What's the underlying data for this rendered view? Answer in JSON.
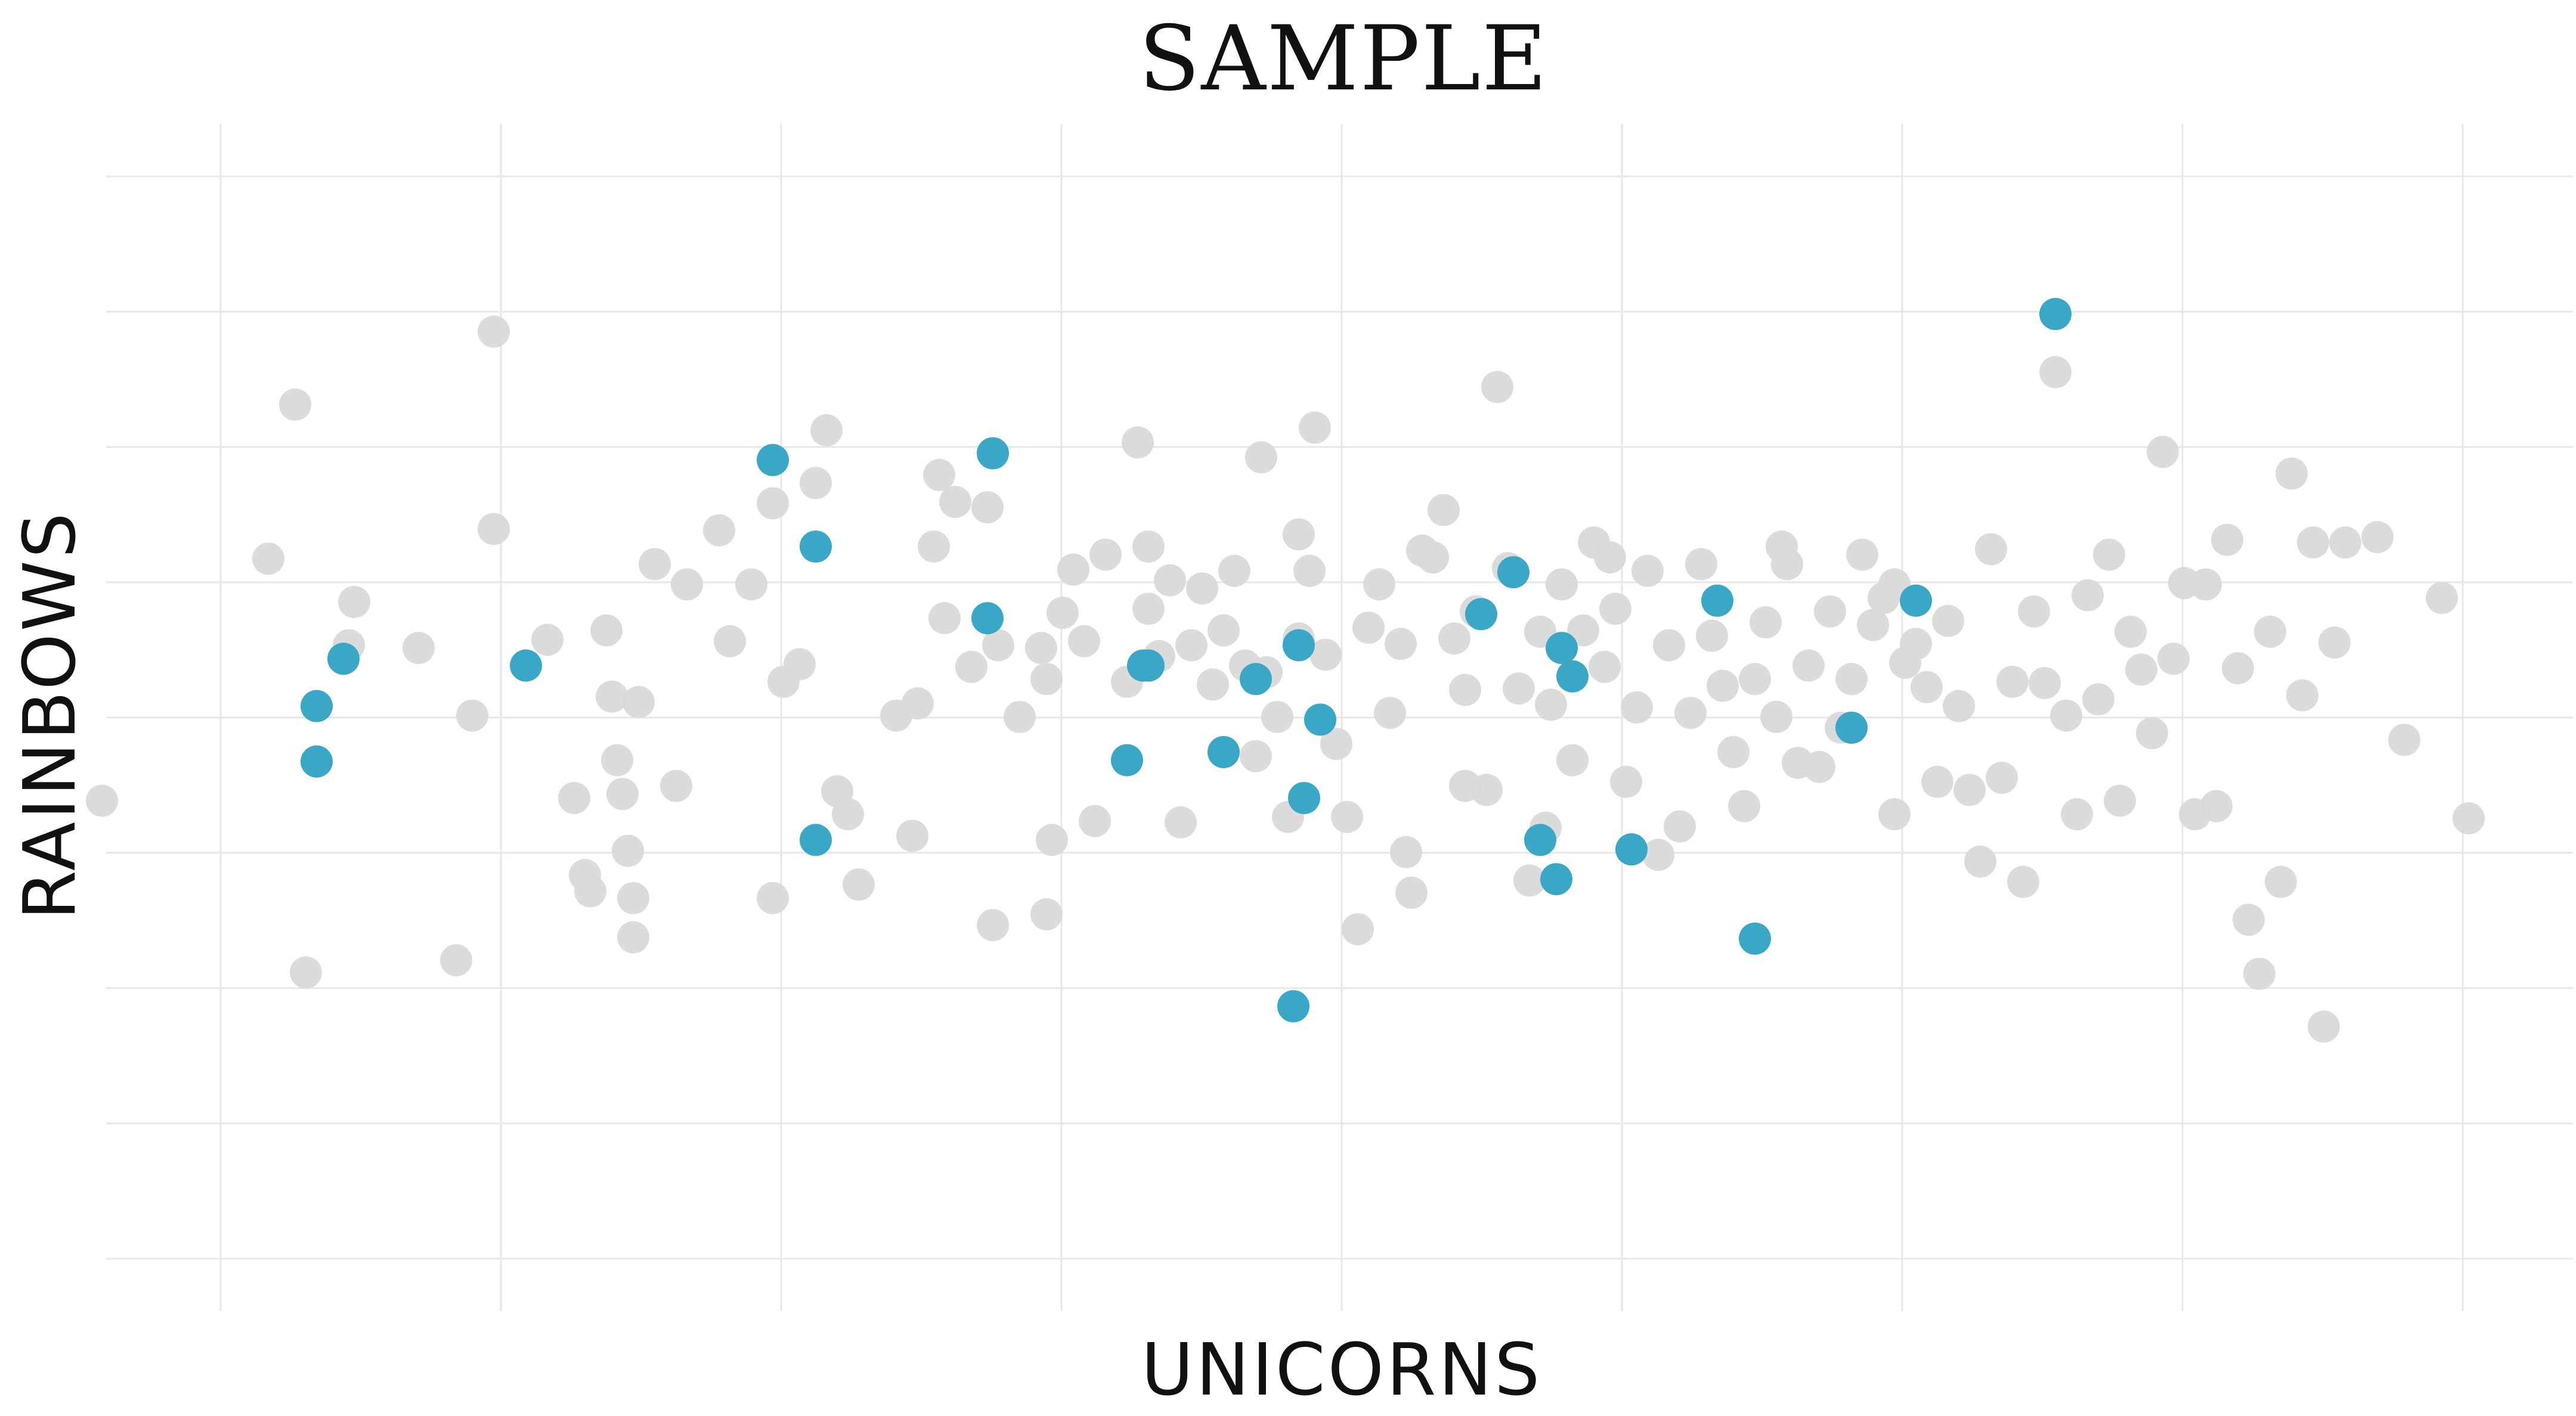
{
  "chart_data": {
    "type": "scatter",
    "title": "Sample",
    "xlabel": "Unicorns",
    "ylabel": "Rainbows",
    "xlim": [
      -2.2,
      2.2
    ],
    "ylim": [
      -4.0,
      4.0
    ],
    "grid": true,
    "tick_labels_shown": false,
    "colors": {
      "background": "#ffffff",
      "grid": "#e7e7e7",
      "points": "#d9d9d9",
      "highlight": "#3aa7c6",
      "text": "#111111"
    },
    "series": [
      {
        "values": [
          [
            -2.21,
            -0.6
          ],
          [
            -1.9,
            1.19
          ],
          [
            -1.85,
            2.33
          ],
          [
            -1.83,
            -1.87
          ],
          [
            -1.74,
            0.87
          ],
          [
            -1.75,
            0.55
          ],
          [
            -1.62,
            0.53
          ],
          [
            -1.52,
            0.03
          ],
          [
            -1.55,
            -1.78
          ],
          [
            -1.48,
            2.87
          ],
          [
            -1.48,
            1.41
          ],
          [
            -1.38,
            0.59
          ],
          [
            -1.33,
            -0.58
          ],
          [
            -1.31,
            -1.15
          ],
          [
            -1.3,
            -1.27
          ],
          [
            -1.27,
            0.66
          ],
          [
            -1.26,
            0.17
          ],
          [
            -1.25,
            -0.3
          ],
          [
            -1.24,
            -0.55
          ],
          [
            -1.23,
            -0.97
          ],
          [
            -1.22,
            -1.32
          ],
          [
            -1.22,
            -1.61
          ],
          [
            -1.21,
            0.13
          ],
          [
            -1.18,
            1.15
          ],
          [
            -1.14,
            -0.49
          ],
          [
            -1.12,
            1.0
          ],
          [
            -1.06,
            1.4
          ],
          [
            -1.04,
            0.58
          ],
          [
            -1.0,
            1.0
          ],
          [
            -0.96,
            1.6
          ],
          [
            -0.96,
            -1.32
          ],
          [
            -0.94,
            0.28
          ],
          [
            -0.91,
            0.41
          ],
          [
            -0.88,
            1.75
          ],
          [
            -0.86,
            2.14
          ],
          [
            -0.84,
            -0.53
          ],
          [
            -0.82,
            -0.7
          ],
          [
            -0.8,
            -1.22
          ],
          [
            -0.73,
            0.03
          ],
          [
            -0.7,
            -0.86
          ],
          [
            -0.66,
            1.28
          ],
          [
            -0.65,
            1.81
          ],
          [
            -0.64,
            0.75
          ],
          [
            -0.62,
            1.61
          ],
          [
            -0.59,
            0.39
          ],
          [
            -0.56,
            1.57
          ],
          [
            -0.55,
            -1.52
          ],
          [
            -0.54,
            0.55
          ],
          [
            -0.5,
            0.02
          ],
          [
            -0.46,
            0.53
          ],
          [
            -0.45,
            -1.44
          ],
          [
            -0.44,
            -0.89
          ],
          [
            -0.42,
            0.79
          ],
          [
            -0.4,
            1.11
          ],
          [
            -0.38,
            0.58
          ],
          [
            -0.36,
            -0.75
          ],
          [
            -0.34,
            1.22
          ],
          [
            -0.3,
            0.28
          ],
          [
            -0.28,
            2.05
          ],
          [
            -0.26,
            0.82
          ],
          [
            -0.24,
            0.47
          ],
          [
            -0.22,
            1.03
          ],
          [
            -0.2,
            -0.76
          ],
          [
            -0.18,
            0.55
          ],
          [
            -0.16,
            0.97
          ],
          [
            -0.14,
            0.26
          ],
          [
            -0.12,
            0.66
          ],
          [
            -0.1,
            1.1
          ],
          [
            -0.08,
            0.4
          ],
          [
            -0.06,
            -0.27
          ],
          [
            -0.05,
            1.94
          ],
          [
            -0.04,
            0.35
          ],
          [
            -0.02,
            0.02
          ],
          [
            0.0,
            -0.72
          ],
          [
            0.02,
            0.6
          ],
          [
            0.04,
            1.1
          ],
          [
            0.05,
            2.16
          ],
          [
            0.07,
            0.48
          ],
          [
            0.09,
            -0.18
          ],
          [
            0.11,
            -0.72
          ],
          [
            0.13,
            -1.55
          ],
          [
            0.15,
            0.68
          ],
          [
            0.17,
            1.0
          ],
          [
            0.19,
            0.05
          ],
          [
            0.21,
            0.56
          ],
          [
            0.23,
            -1.28
          ],
          [
            0.25,
            1.25
          ],
          [
            0.27,
            1.2
          ],
          [
            0.29,
            1.55
          ],
          [
            0.31,
            0.6
          ],
          [
            0.33,
            0.22
          ],
          [
            0.35,
            0.8
          ],
          [
            0.37,
            -0.52
          ],
          [
            0.39,
            2.46
          ],
          [
            0.41,
            1.12
          ],
          [
            0.43,
            0.23
          ],
          [
            0.45,
            -1.19
          ],
          [
            0.47,
            0.65
          ],
          [
            0.49,
            0.11
          ],
          [
            0.51,
            1.0
          ],
          [
            0.53,
            -0.3
          ],
          [
            0.55,
            0.66
          ],
          [
            0.57,
            1.31
          ],
          [
            0.59,
            0.39
          ],
          [
            0.61,
            0.82
          ],
          [
            0.63,
            -0.46
          ],
          [
            0.65,
            0.09
          ],
          [
            0.67,
            1.1
          ],
          [
            0.69,
            -1.0
          ],
          [
            0.71,
            0.55
          ],
          [
            0.73,
            -0.79
          ],
          [
            0.75,
            0.05
          ],
          [
            0.77,
            1.15
          ],
          [
            0.79,
            0.62
          ],
          [
            0.81,
            0.25
          ],
          [
            0.83,
            -0.24
          ],
          [
            0.85,
            -0.64
          ],
          [
            0.87,
            0.3
          ],
          [
            0.89,
            0.72
          ],
          [
            0.91,
            0.02
          ],
          [
            0.93,
            1.15
          ],
          [
            0.95,
            -0.32
          ],
          [
            0.97,
            0.4
          ],
          [
            0.99,
            -0.35
          ],
          [
            1.01,
            0.8
          ],
          [
            1.03,
            -0.06
          ],
          [
            1.05,
            0.3
          ],
          [
            1.07,
            1.22
          ],
          [
            1.09,
            0.7
          ],
          [
            1.11,
            0.9
          ],
          [
            1.13,
            -0.7
          ],
          [
            1.15,
            0.42
          ],
          [
            1.17,
            0.56
          ],
          [
            1.19,
            0.24
          ],
          [
            1.21,
            -0.46
          ],
          [
            1.23,
            0.73
          ],
          [
            1.25,
            0.1
          ],
          [
            1.27,
            -0.52
          ],
          [
            1.29,
            -1.05
          ],
          [
            1.31,
            1.26
          ],
          [
            1.33,
            -0.43
          ],
          [
            1.35,
            0.28
          ],
          [
            1.37,
            -1.2
          ],
          [
            1.39,
            0.8
          ],
          [
            1.41,
            0.27
          ],
          [
            1.43,
            2.57
          ],
          [
            1.45,
            0.03
          ],
          [
            1.47,
            -0.7
          ],
          [
            1.49,
            0.92
          ],
          [
            1.51,
            0.15
          ],
          [
            1.53,
            1.22
          ],
          [
            1.55,
            -0.6
          ],
          [
            1.57,
            0.65
          ],
          [
            1.59,
            0.37
          ],
          [
            1.61,
            -0.1
          ],
          [
            1.63,
            1.98
          ],
          [
            1.65,
            0.45
          ],
          [
            1.67,
            1.01
          ],
          [
            1.69,
            -0.7
          ],
          [
            1.71,
            1.0
          ],
          [
            1.73,
            -0.64
          ],
          [
            1.75,
            1.33
          ],
          [
            1.77,
            0.38
          ],
          [
            1.79,
            -1.48
          ],
          [
            1.81,
            -1.88
          ],
          [
            1.83,
            0.65
          ],
          [
            1.85,
            -1.2
          ],
          [
            1.87,
            1.82
          ],
          [
            1.89,
            0.18
          ],
          [
            1.91,
            1.31
          ],
          [
            1.93,
            -2.27
          ],
          [
            1.95,
            0.57
          ],
          [
            1.97,
            1.31
          ],
          [
            2.03,
            1.35
          ],
          [
            2.08,
            -0.15
          ],
          [
            2.15,
            0.9
          ],
          [
            2.2,
            -0.73
          ],
          [
            -0.26,
            1.28
          ],
          [
            0.33,
            -0.49
          ],
          [
            0.6,
            1.2
          ],
          [
            0.92,
            1.28
          ],
          [
            1.13,
            1.0
          ],
          [
            -0.45,
            0.3
          ],
          [
            -0.69,
            0.12
          ],
          [
            0.22,
            -0.98
          ],
          [
            0.02,
            1.37
          ],
          [
            0.48,
            -0.8
          ]
        ]
      },
      {
        "values": [
          [
            -1.81,
            0.1
          ],
          [
            -1.81,
            -0.31
          ],
          [
            -1.76,
            0.45
          ],
          [
            -1.42,
            0.4
          ],
          [
            -0.96,
            1.92
          ],
          [
            -0.88,
            1.28
          ],
          [
            -0.88,
            -0.89
          ],
          [
            -0.56,
            0.75
          ],
          [
            -0.55,
            1.97
          ],
          [
            -0.3,
            -0.3
          ],
          [
            -0.26,
            0.4
          ],
          [
            -0.27,
            0.4
          ],
          [
            -0.12,
            -0.24
          ],
          [
            -0.06,
            0.3
          ],
          [
            0.01,
            -2.12
          ],
          [
            0.02,
            0.55
          ],
          [
            0.03,
            -0.58
          ],
          [
            0.06,
            0.0
          ],
          [
            0.36,
            0.78
          ],
          [
            0.42,
            1.09
          ],
          [
            0.47,
            -0.89
          ],
          [
            0.5,
            -1.18
          ],
          [
            0.51,
            0.53
          ],
          [
            0.53,
            0.32
          ],
          [
            0.64,
            -0.96
          ],
          [
            0.8,
            0.88
          ],
          [
            0.87,
            -1.62
          ],
          [
            1.05,
            -0.06
          ],
          [
            1.17,
            0.88
          ],
          [
            1.43,
            3.0
          ]
        ]
      }
    ]
  }
}
